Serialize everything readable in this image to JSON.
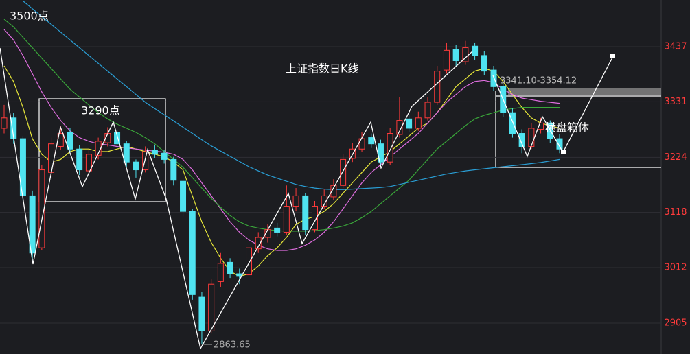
{
  "chart_data": {
    "type": "candlestick",
    "title": "上证指数日K线",
    "open": [
      3280,
      3300,
      3260,
      3150,
      3050,
      3195,
      3245,
      3272,
      3240,
      3198,
      3228,
      3252,
      3272,
      3250,
      3215,
      3200,
      3238,
      3232,
      3220,
      3178,
      3120,
      2955,
      2890,
      2985,
      3022,
      3000,
      2998,
      3048,
      3070,
      3088,
      3080,
      3130,
      3150,
      3085,
      3130,
      3148,
      3170,
      3222,
      3240,
      3262,
      3250,
      3215,
      3268,
      3298,
      3280,
      3300,
      3330,
      3392,
      3432,
      3408,
      3438,
      3420,
      3392,
      3360,
      3310,
      3270,
      3245,
      3278,
      3290,
      3260
    ],
    "high": [
      3325,
      3310,
      3265,
      3160,
      3210,
      3262,
      3285,
      3280,
      3248,
      3240,
      3262,
      3282,
      3278,
      3255,
      3220,
      3245,
      3248,
      3238,
      3225,
      3185,
      3125,
      2965,
      2990,
      3040,
      3030,
      3010,
      3060,
      3080,
      3095,
      3098,
      3170,
      3165,
      3155,
      3140,
      3162,
      3182,
      3230,
      3252,
      3272,
      3270,
      3258,
      3280,
      3340,
      3305,
      3312,
      3340,
      3400,
      3445,
      3440,
      3448,
      3445,
      3428,
      3400,
      3366,
      3318,
      3278,
      3290,
      3300,
      3295,
      3268
    ],
    "low": [
      3270,
      3250,
      3140,
      3025,
      3045,
      3185,
      3238,
      3230,
      3190,
      3192,
      3220,
      3245,
      3240,
      3205,
      3185,
      3195,
      3222,
      3212,
      3170,
      3110,
      2950,
      2864,
      2885,
      2975,
      2992,
      2980,
      2992,
      3040,
      3060,
      3072,
      3075,
      3120,
      3075,
      3080,
      3125,
      3142,
      3165,
      3215,
      3235,
      3242,
      3205,
      3210,
      3262,
      3272,
      3275,
      3295,
      3325,
      3385,
      3400,
      3402,
      3412,
      3382,
      3352,
      3302,
      3262,
      3232,
      3240,
      3270,
      3252,
      3232
    ],
    "close": [
      3300,
      3260,
      3150,
      3040,
      3200,
      3250,
      3270,
      3240,
      3200,
      3230,
      3255,
      3270,
      3250,
      3215,
      3200,
      3235,
      3230,
      3220,
      3180,
      3120,
      2960,
      2890,
      2980,
      3020,
      3000,
      2995,
      3050,
      3070,
      3085,
      3080,
      3130,
      3150,
      3085,
      3130,
      3150,
      3170,
      3220,
      3240,
      3260,
      3250,
      3215,
      3270,
      3295,
      3280,
      3300,
      3330,
      3390,
      3430,
      3410,
      3435,
      3420,
      3390,
      3360,
      3310,
      3270,
      3245,
      3280,
      3290,
      3260,
      3240
    ],
    "series": [
      {
        "color": "#e8e83a",
        "values": [
          3400,
          3370,
          3320,
          3260,
          3230,
          3215,
          3220,
          3235,
          3240,
          3240,
          3235,
          3235,
          3240,
          3245,
          3240,
          3235,
          3230,
          3225,
          3215,
          3200,
          3150,
          3100,
          3060,
          3030,
          3005,
          2995,
          3000,
          3015,
          3035,
          3050,
          3070,
          3095,
          3105,
          3110,
          3120,
          3135,
          3155,
          3175,
          3195,
          3215,
          3225,
          3235,
          3250,
          3265,
          3280,
          3290,
          3310,
          3335,
          3360,
          3375,
          3390,
          3395,
          3390,
          3370,
          3345,
          3320,
          3300,
          3290,
          3285,
          3280
        ]
      },
      {
        "color": "#e06ee0",
        "values": [
          3470,
          3450,
          3420,
          3385,
          3350,
          3320,
          3295,
          3275,
          3262,
          3255,
          3250,
          3248,
          3245,
          3242,
          3240,
          3238,
          3236,
          3234,
          3230,
          3220,
          3200,
          3175,
          3150,
          3125,
          3100,
          3080,
          3065,
          3055,
          3048,
          3045,
          3045,
          3048,
          3055,
          3065,
          3080,
          3100,
          3125,
          3150,
          3175,
          3195,
          3210,
          3225,
          3240,
          3255,
          3270,
          3290,
          3310,
          3330,
          3345,
          3360,
          3370,
          3372,
          3368,
          3355,
          3345,
          3338,
          3335,
          3332,
          3330,
          3328
        ]
      },
      {
        "color": "#3aa63a",
        "values": [
          3490,
          3475,
          3455,
          3435,
          3415,
          3395,
          3375,
          3355,
          3340,
          3325,
          3310,
          3298,
          3288,
          3280,
          3272,
          3262,
          3250,
          3235,
          3220,
          3205,
          3185,
          3165,
          3145,
          3128,
          3112,
          3100,
          3092,
          3088,
          3085,
          3083,
          3082,
          3082,
          3082,
          3083,
          3085,
          3088,
          3092,
          3098,
          3108,
          3120,
          3135,
          3150,
          3165,
          3180,
          3200,
          3220,
          3240,
          3255,
          3270,
          3285,
          3298,
          3305,
          3310,
          3315,
          3318,
          3320,
          3320,
          3320,
          3320,
          3320
        ]
      },
      {
        "color": "#2a9fd6",
        "values": [
          null,
          null,
          3525,
          3510,
          3495,
          3480,
          3465,
          3450,
          3435,
          3420,
          3405,
          3390,
          3375,
          3360,
          3345,
          3330,
          3318,
          3306,
          3294,
          3282,
          3270,
          3258,
          3246,
          3236,
          3226,
          3216,
          3206,
          3198,
          3190,
          3184,
          3178,
          3172,
          3168,
          3165,
          3163,
          3162,
          3162,
          3163,
          3164,
          3165,
          3166,
          3168,
          3172,
          3176,
          3180,
          3184,
          3188,
          3192,
          3195,
          3198,
          3200,
          3202,
          3204,
          3206,
          3208,
          3210,
          3212,
          3214,
          3217,
          3220
        ]
      }
    ],
    "ylim": [
      2845.6,
      3526.8
    ],
    "yticks": [
      3437,
      3331,
      3224,
      3118,
      3012,
      2905
    ],
    "up_color": "#ff3b3b",
    "down_color": "#4fe3f0",
    "grid": true,
    "annotations": [
      "3500点",
      "3290点",
      "3341.10-3354.12",
      "横盘箱体",
      "2863.65"
    ]
  }
}
